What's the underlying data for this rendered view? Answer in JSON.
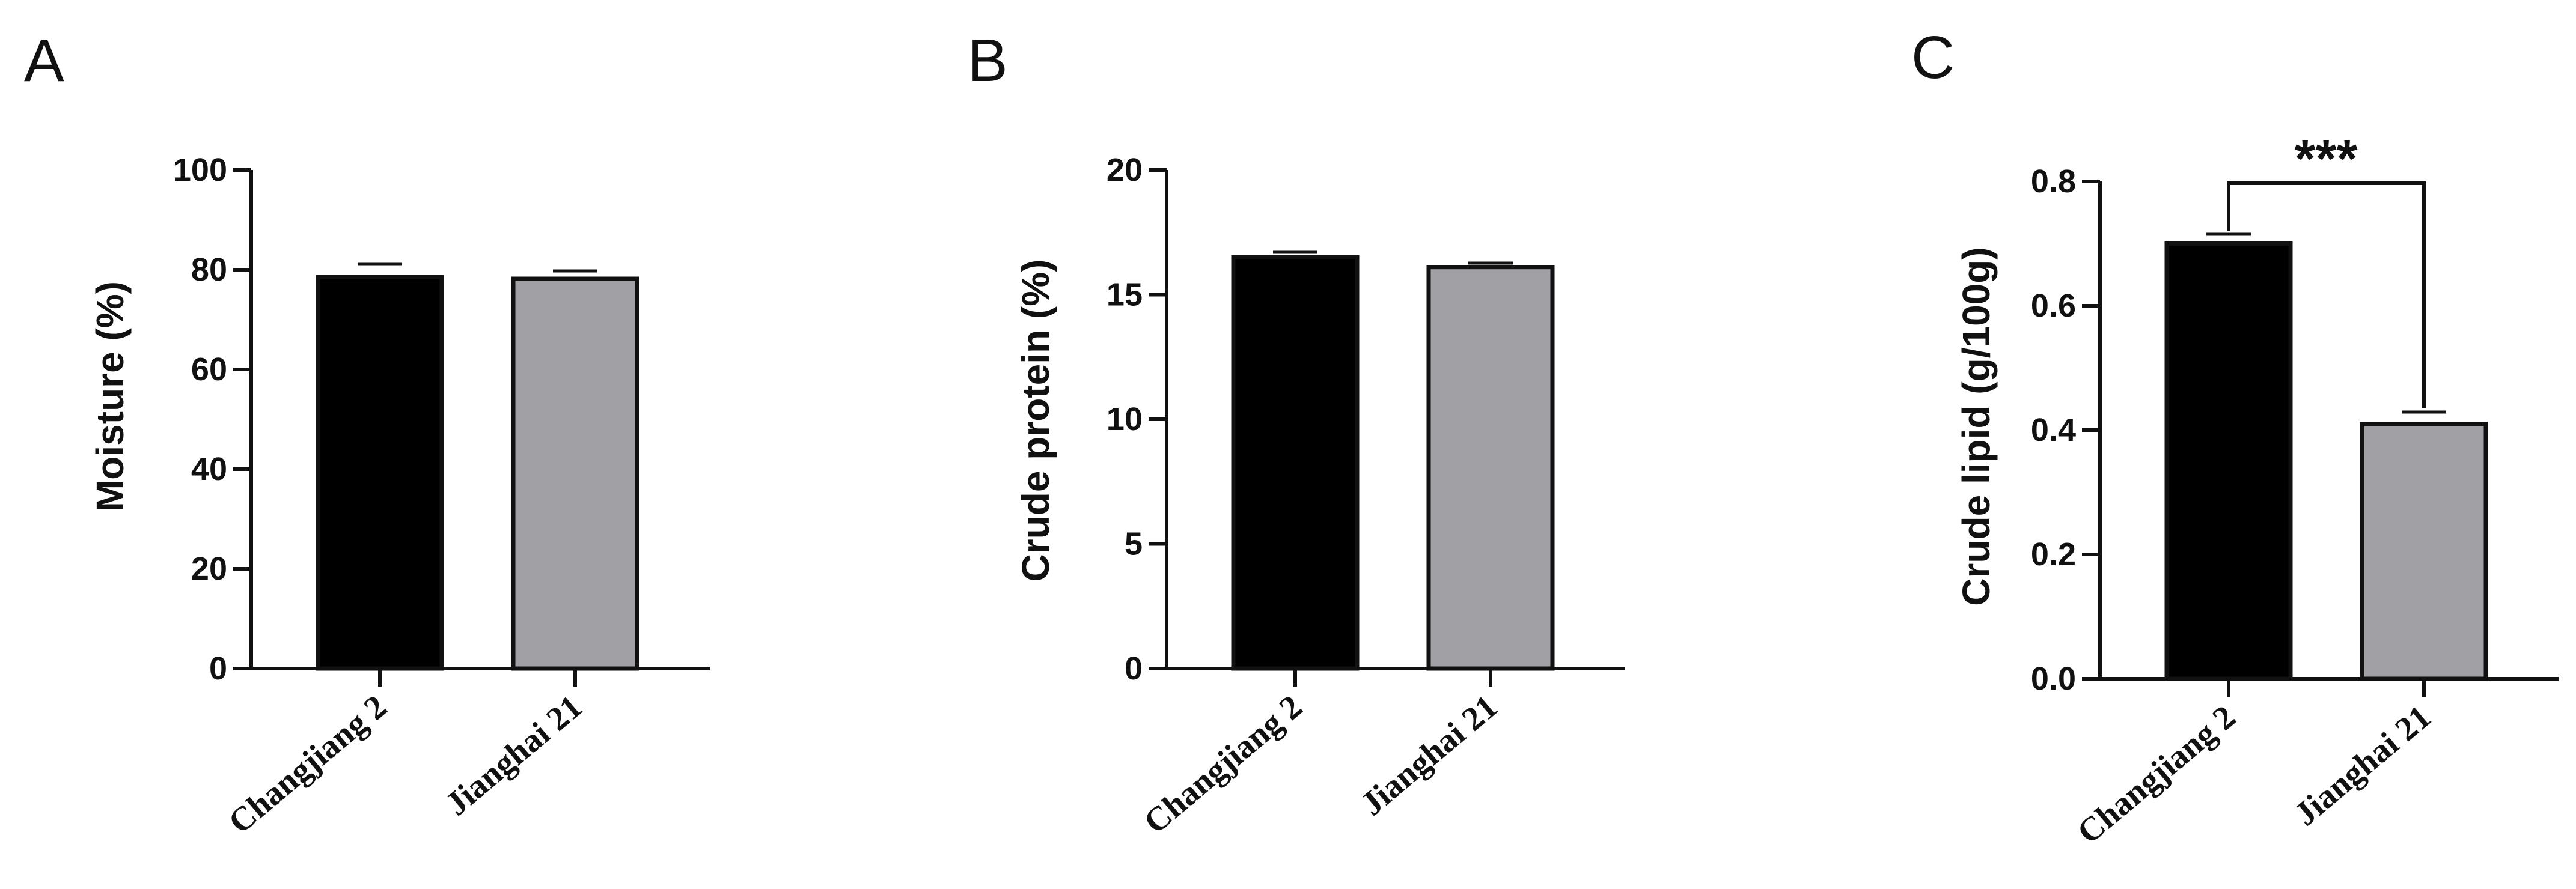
{
  "chart_data": [
    {
      "panel": "A",
      "type": "bar",
      "categories": [
        "Changjiang 2",
        "Jianghai 21"
      ],
      "values": [
        78.5,
        78.2
      ],
      "errors": [
        2.5,
        1.7
      ],
      "colors": [
        "#000000",
        "#a1a0a5"
      ],
      "ylabel": "Moisture (%)",
      "ylim": [
        0,
        100
      ],
      "yticks": [
        "0",
        "20",
        "40",
        "60",
        "80",
        "100"
      ],
      "significance": ""
    },
    {
      "panel": "B",
      "type": "bar",
      "categories": [
        "Changjiang 2",
        "Jianghai 21"
      ],
      "values": [
        16.5,
        16.1
      ],
      "errors": [
        0.2,
        0.15
      ],
      "colors": [
        "#000000",
        "#a1a0a5"
      ],
      "ylabel": "Crude protein (%)",
      "ylim": [
        0,
        20
      ],
      "yticks": [
        "0",
        "5",
        "10",
        "15",
        "20"
      ],
      "significance": ""
    },
    {
      "panel": "C",
      "type": "bar",
      "categories": [
        "Changjiang 2",
        "Jianghai 21"
      ],
      "values": [
        0.7,
        0.41
      ],
      "errors": [
        0.015,
        0.018
      ],
      "colors": [
        "#000000",
        "#a1a0a5"
      ],
      "ylabel": "Crude lipid (g/100g)",
      "ylim": [
        0,
        0.8
      ],
      "yticks": [
        "0.0",
        "0.2",
        "0.4",
        "0.6",
        "0.8"
      ],
      "significance": "***"
    }
  ]
}
